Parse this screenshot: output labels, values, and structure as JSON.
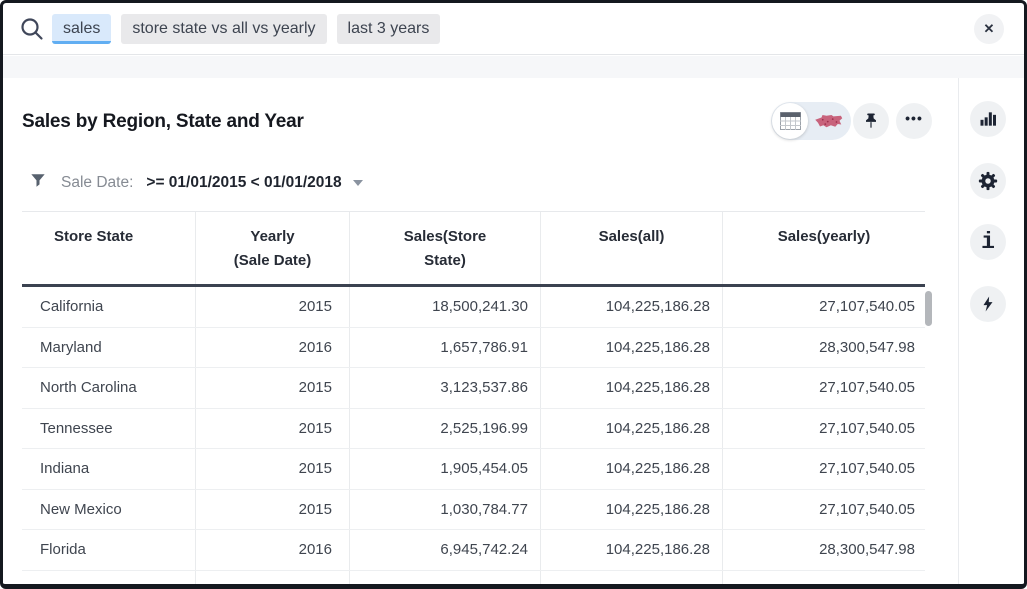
{
  "search_bar": {
    "tokens": [
      {
        "label": "sales",
        "state": "active"
      },
      {
        "label": "store state vs all vs yearly",
        "state": "default"
      },
      {
        "label": "last 3 years",
        "state": "default"
      }
    ],
    "close_glyph": "✕"
  },
  "content": {
    "title": "Sales by Region, State and Year",
    "view_toggle": {
      "options": [
        "table-view",
        "map-view"
      ],
      "selected": "table-view"
    },
    "more_glyph": "•••",
    "filter": {
      "label": "Sale Date:",
      "value": ">= 01/01/2015 < 01/01/2018"
    },
    "table": {
      "columns": [
        {
          "lines": [
            "Store State"
          ]
        },
        {
          "lines": [
            "Yearly",
            "(Sale Date)"
          ]
        },
        {
          "lines": [
            "Sales(Store",
            "State)"
          ]
        },
        {
          "lines": [
            "Sales(all)"
          ]
        },
        {
          "lines": [
            "Sales(yearly)"
          ]
        }
      ],
      "rows": [
        [
          "California",
          "2015",
          "18,500,241.30",
          "104,225,186.28",
          "27,107,540.05"
        ],
        [
          "Maryland",
          "2016",
          "1,657,786.91",
          "104,225,186.28",
          "28,300,547.98"
        ],
        [
          "North Carolina",
          "2015",
          "3,123,537.86",
          "104,225,186.28",
          "27,107,540.05"
        ],
        [
          "Tennessee",
          "2015",
          "2,525,196.99",
          "104,225,186.28",
          "27,107,540.05"
        ],
        [
          "Indiana",
          "2015",
          "1,905,454.05",
          "104,225,186.28",
          "27,107,540.05"
        ],
        [
          "New Mexico",
          "2015",
          "1,030,784.77",
          "104,225,186.28",
          "27,107,540.05"
        ],
        [
          "Florida",
          "2016",
          "6,945,742.24",
          "104,225,186.28",
          "28,300,547.98"
        ]
      ]
    }
  },
  "right_rail": {
    "buttons": [
      "bar-chart-icon",
      "gear-icon",
      "info-icon",
      "lightning-icon"
    ]
  },
  "icons": {
    "search": "magnifier",
    "close": "x-circle",
    "filter": "funnel",
    "caret": "chevron-down",
    "view_table": "table-grid",
    "view_map": "usa-map",
    "pin": "pushpin",
    "more": "ellipsis"
  },
  "colors": {
    "active_token_bg": "#d9e9fb",
    "active_token_underline": "#61aef2",
    "token_bg": "#e9e9eb",
    "text_dark": "#1f242e",
    "text_gray": "#868b93",
    "band_bg": "#f6f7f9",
    "border_light": "#e7e9ec",
    "header_border_dark": "#3b4250",
    "icon_circle_bg": "#eff1f3",
    "icon_color": "#1d2433",
    "map_icon_color": "#c4536f"
  }
}
